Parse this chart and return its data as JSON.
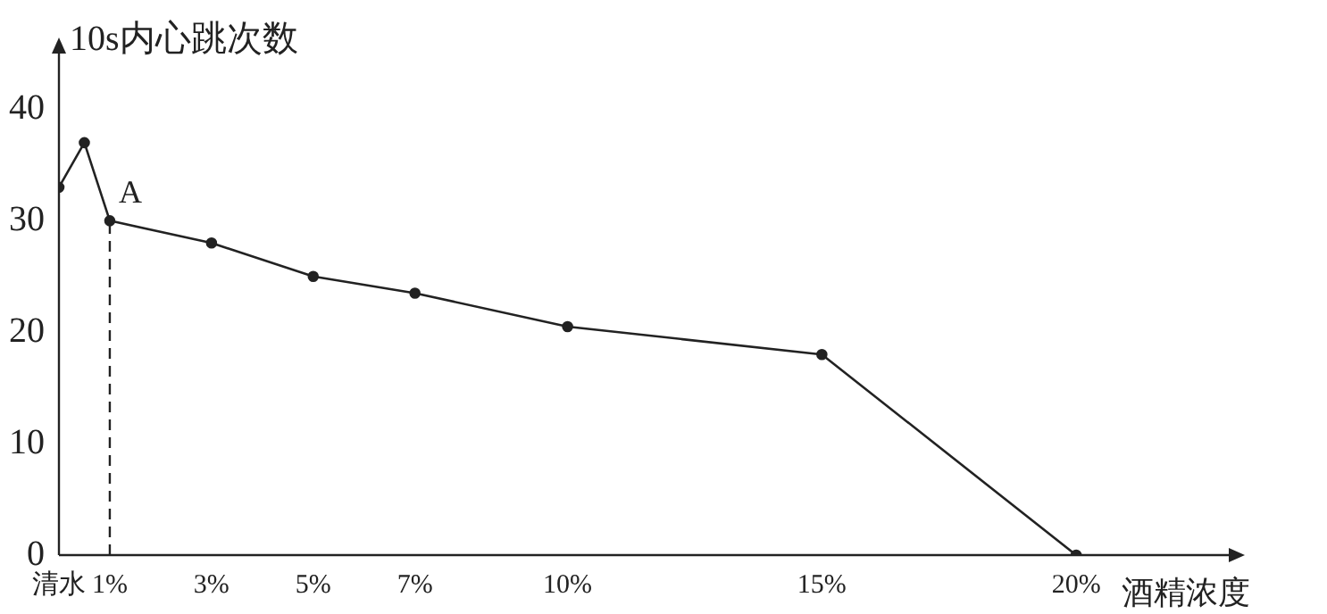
{
  "chart_data": {
    "type": "line",
    "xlabel": "酒精浓度",
    "ylabel": "10s内心跳次数",
    "x": [
      0,
      0.5,
      1,
      3,
      5,
      7,
      10,
      15,
      20
    ],
    "series": [
      {
        "color": "#222222",
        "values": [
          33,
          37,
          30,
          28,
          25,
          23.5,
          20.5,
          18,
          0
        ]
      }
    ],
    "xlim": [
      0,
      23
    ],
    "ylim": [
      0,
      45
    ],
    "xticks": [
      {
        "value": 0,
        "label": "清水"
      },
      {
        "value": 1,
        "label": "1%"
      },
      {
        "value": 3,
        "label": "3%"
      },
      {
        "value": 5,
        "label": "5%"
      },
      {
        "value": 7,
        "label": "7%"
      },
      {
        "value": 10,
        "label": "10%"
      },
      {
        "value": 15,
        "label": "15%"
      },
      {
        "value": 20,
        "label": "20%"
      }
    ],
    "yticks": [
      0,
      10,
      20,
      30,
      40
    ],
    "annotations": [
      {
        "text": "A",
        "x": 1,
        "y": 30
      }
    ],
    "ref_lines": [
      {
        "axis": "x",
        "value": 1,
        "line_style": "dashed",
        "color": "#222222"
      }
    ],
    "marker": "circle",
    "line_style": "solid",
    "grid": false,
    "legend": false
  }
}
